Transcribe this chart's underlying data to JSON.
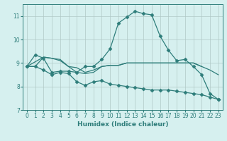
{
  "xlabel": "Humidex (Indice chaleur)",
  "bg_color": "#d6f0ef",
  "grid_color": "#b0c8c6",
  "line_color": "#2e7d7a",
  "xlim": [
    -0.5,
    23.5
  ],
  "ylim": [
    7,
    11.5
  ],
  "yticks": [
    7,
    8,
    9,
    10,
    11
  ],
  "xticks": [
    0,
    1,
    2,
    3,
    4,
    5,
    6,
    7,
    8,
    9,
    10,
    11,
    12,
    13,
    14,
    15,
    16,
    17,
    18,
    19,
    20,
    21,
    22,
    23
  ],
  "series": [
    {
      "x": [
        0,
        1,
        2,
        3,
        4,
        5,
        6,
        7,
        8,
        9,
        10,
        11,
        12,
        13,
        14,
        15,
        16,
        17,
        18,
        19,
        20,
        21,
        22,
        23
      ],
      "y": [
        8.85,
        9.35,
        9.2,
        8.6,
        8.65,
        8.65,
        8.6,
        8.85,
        8.85,
        9.15,
        9.6,
        10.7,
        10.95,
        11.2,
        11.1,
        11.05,
        10.15,
        9.55,
        9.1,
        9.15,
        8.85,
        8.5,
        7.7,
        7.45
      ],
      "marker": true,
      "markersize": 2.5
    },
    {
      "x": [
        0,
        1,
        2,
        3,
        4,
        5,
        6,
        7,
        8,
        9,
        10,
        11,
        12,
        13,
        14,
        15,
        16,
        17,
        18,
        19,
        20,
        21,
        22,
        23
      ],
      "y": [
        8.85,
        8.85,
        9.25,
        9.2,
        9.15,
        8.85,
        8.6,
        8.55,
        8.6,
        8.85,
        8.9,
        8.9,
        9.0,
        9.0,
        9.0,
        9.0,
        9.0,
        9.0,
        9.0,
        9.0,
        9.0,
        8.85,
        8.7,
        8.5
      ],
      "marker": false,
      "markersize": 0
    },
    {
      "x": [
        0,
        2,
        3,
        4,
        5,
        6,
        7,
        8,
        9,
        10,
        11,
        12,
        13,
        14,
        15,
        16,
        17,
        18,
        19,
        20,
        21
      ],
      "y": [
        8.85,
        9.25,
        9.2,
        9.1,
        8.85,
        8.8,
        8.6,
        8.7,
        8.85,
        8.9,
        8.9,
        9.0,
        9.0,
        9.0,
        9.0,
        9.0,
        9.0,
        9.0,
        9.0,
        9.0,
        8.85
      ],
      "marker": false,
      "markersize": 0
    },
    {
      "x": [
        0,
        1,
        2,
        3,
        4,
        5,
        6,
        7,
        8,
        9,
        10,
        11,
        12,
        13,
        14,
        15,
        16,
        17,
        18,
        19,
        20,
        21,
        22,
        23
      ],
      "y": [
        8.85,
        8.85,
        8.7,
        8.5,
        8.6,
        8.55,
        8.2,
        8.05,
        8.2,
        8.25,
        8.1,
        8.05,
        8.0,
        7.95,
        7.9,
        7.85,
        7.85,
        7.85,
        7.8,
        7.75,
        7.7,
        7.65,
        7.55,
        7.45
      ],
      "marker": true,
      "markersize": 2.5
    }
  ]
}
